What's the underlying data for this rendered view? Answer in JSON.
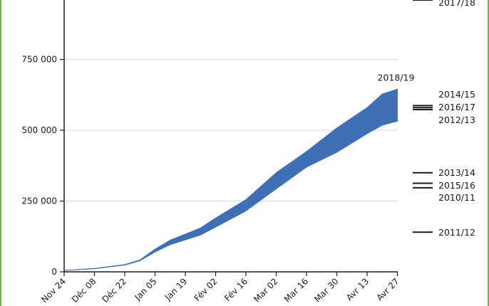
{
  "chart_data": {
    "type": "area",
    "title": "",
    "xlabel": "",
    "ylabel": "",
    "ylim": [
      0,
      960000
    ],
    "grid": true,
    "y_ticks": [
      {
        "value": 0,
        "label": "0"
      },
      {
        "value": 250000,
        "label": "250 000"
      },
      {
        "value": 500000,
        "label": "500 000"
      },
      {
        "value": 750000,
        "label": "750 000"
      }
    ],
    "x_ticks": [
      "Nov 24",
      "Déc 08",
      "Déc 22",
      "Jan 05",
      "Jan 19",
      "Fév 02",
      "Fév 16",
      "Mar 02",
      "Mar 16",
      "Mar 30",
      "Avr 13",
      "Avr 27"
    ],
    "series": [
      {
        "name": "2018/19",
        "color": "#3f6fb5",
        "x": [
          0,
          1,
          2,
          2.5,
          3,
          3.5,
          4,
          4.5,
          5,
          6,
          7,
          8,
          9,
          10,
          10.5,
          11
        ],
        "upper": [
          5000,
          12000,
          26000,
          42000,
          80000,
          112000,
          133000,
          155000,
          190000,
          255000,
          350000,
          425000,
          508000,
          580000,
          628000,
          645000
        ],
        "lower": [
          5000,
          11000,
          24000,
          39000,
          70000,
          96000,
          113000,
          130000,
          158000,
          215000,
          293000,
          370000,
          422000,
          488000,
          518000,
          532000
        ]
      }
    ],
    "season_markers": [
      {
        "label": "2017/18",
        "value": 960000
      },
      {
        "label": "2014/15",
        "value": 587000
      },
      {
        "label": "2016/17",
        "value": 580000
      },
      {
        "label": "2012/13",
        "value": 573000
      },
      {
        "label": "2013/14",
        "value": 350000
      },
      {
        "label": "2015/16",
        "value": 313000
      },
      {
        "label": "2010/11",
        "value": 297000
      },
      {
        "label": "2011/12",
        "value": 140000
      }
    ],
    "series_label": "2018/19"
  }
}
